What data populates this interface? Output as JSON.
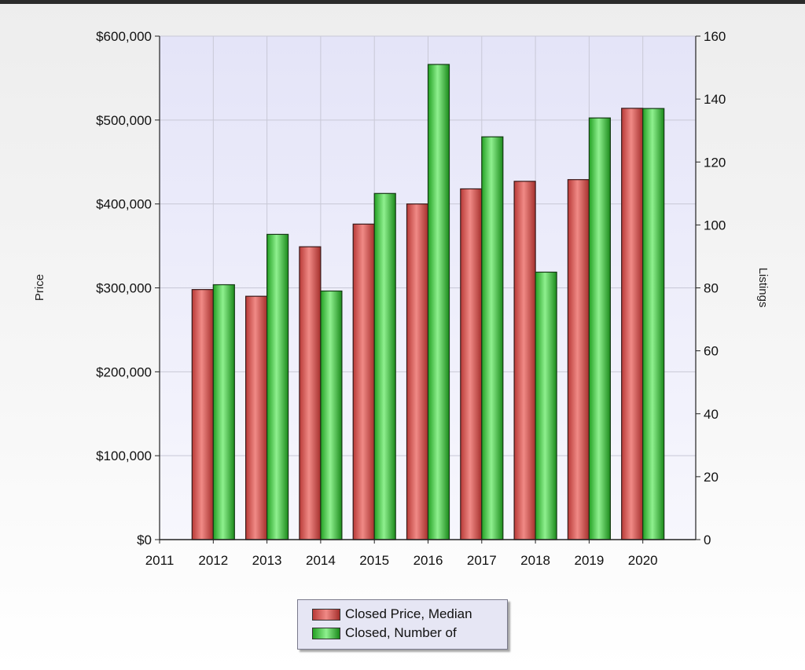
{
  "chart_data": {
    "type": "bar",
    "categories": [
      "2012",
      "2013",
      "2014",
      "2015",
      "2016",
      "2017",
      "2018",
      "2019",
      "2020"
    ],
    "x_ticks": [
      "2011",
      "2012",
      "2013",
      "2014",
      "2015",
      "2016",
      "2017",
      "2018",
      "2019",
      "2020"
    ],
    "series": [
      {
        "name": "Closed Price, Median",
        "axis": "left",
        "color": "#d9534f",
        "values": [
          298000,
          290000,
          349000,
          376000,
          400000,
          418000,
          427000,
          429000,
          514000
        ]
      },
      {
        "name": "Closed, Number of",
        "axis": "right",
        "color": "#3cc23c",
        "values": [
          81,
          97,
          79,
          110,
          151,
          128,
          85,
          134,
          137
        ]
      }
    ],
    "ylabel": "Price",
    "ylabel_right": "Listings",
    "ylim": [
      0,
      600000
    ],
    "ylim_right": [
      0,
      160
    ],
    "y_ticks": [
      "$0",
      "$100,000",
      "$200,000",
      "$300,000",
      "$400,000",
      "$500,000",
      "$600,000"
    ],
    "y_ticks_right": [
      "0",
      "20",
      "40",
      "60",
      "80",
      "100",
      "120",
      "140",
      "160"
    ],
    "grid": true,
    "legend_position": "bottom-center"
  }
}
